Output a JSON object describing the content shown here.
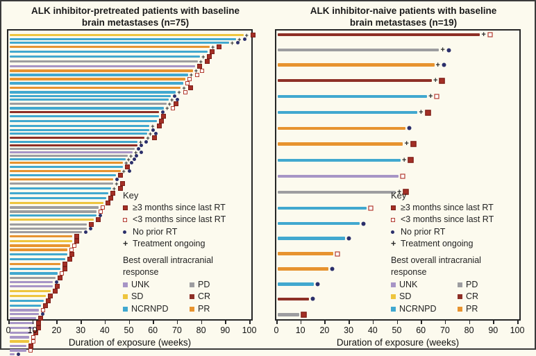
{
  "colors": {
    "background": "#FCFAEE",
    "response": {
      "UNK": "#A795C6",
      "SD": "#EEC53E",
      "NCRNPD": "#41A8CF",
      "PD": "#9D9DA0",
      "CR": "#8E2F26",
      "PR": "#E7932F"
    },
    "markers": {
      "rt_ge3_fill": "#A42F26",
      "rt_lt3_border": "#B23A2E",
      "no_prior_rt": "#2B2F6B",
      "ongoing_plus": "#2a2a2a"
    }
  },
  "legend": {
    "key_title": "Key",
    "rt_ge3": "≥3 months since last RT",
    "rt_lt3": "<3 months since last RT",
    "no_rt": "No prior RT",
    "ongoing": "Treatment ongoing",
    "response_title": "Best overall intracranial response",
    "responses": {
      "UNK": "UNK",
      "SD": "SD",
      "NCRNPD": "NCRNPD",
      "PD": "PD",
      "CR": "CR",
      "PR": "PR"
    }
  },
  "panels": [
    {
      "title_line1": "ALK inhibitor-pretreated patients with baseline",
      "title_line2": "brain metastases (n=75)",
      "xlabel": "Duration of exposure (weeks)"
    },
    {
      "title_line1": "ALK inhibitor-naive patients with baseline",
      "title_line2": "brain metastases (n=19)",
      "xlabel": "Duration of exposure (weeks)"
    }
  ],
  "chart_data": [
    {
      "type": "bar",
      "orientation": "horizontal-swimmer",
      "title": "ALK inhibitor-pretreated patients with baseline brain metastases (n=75)",
      "xlabel": "Duration of exposure (weeks)",
      "xlim": [
        0,
        100
      ],
      "xticks": [
        0,
        10,
        20,
        30,
        40,
        50,
        60,
        70,
        80,
        90,
        100
      ],
      "legend_position": "inside-lower-right",
      "grid": false,
      "marker_meaning": {
        "ge3": "≥3 months since last RT",
        "lt3": "<3 months since last RT",
        "none": "No prior RT",
        "ongoing": "Treatment ongoing"
      },
      "patients": {
        "columns": [
          "best_intracranial_response",
          "duration_weeks",
          "rt_status",
          "treatment_ongoing"
        ],
        "rows": [
          [
            "SD",
            97,
            "ge3",
            true
          ],
          [
            "NCRNPD",
            94,
            "none",
            true
          ],
          [
            "NCRNPD",
            91,
            "none",
            true
          ],
          [
            "PR",
            83,
            "ge3",
            true
          ],
          [
            "NCRNPD",
            82,
            "ge3",
            false
          ],
          [
            "NCRNPD",
            79,
            "ge3",
            true
          ],
          [
            "PD",
            78,
            "ge3",
            true
          ],
          [
            "UNK",
            77,
            "ge3",
            false
          ],
          [
            "PR",
            76,
            "lt3",
            true
          ],
          [
            "NCRNPD",
            74,
            "lt3",
            true
          ],
          [
            "PR",
            73,
            "lt3",
            false
          ],
          [
            "NCRNPD",
            72,
            "lt3",
            false
          ],
          [
            "PR",
            71,
            "ge3",
            true
          ],
          [
            "NCRNPD",
            69,
            "lt3",
            true
          ],
          [
            "NCRNPD",
            67,
            "none",
            false
          ],
          [
            "NCRNPD",
            66,
            "none",
            true
          ],
          [
            "PD",
            65,
            "ge3",
            true
          ],
          [
            "NCRNPD",
            64,
            "lt3",
            true
          ],
          [
            "CR",
            62,
            "none",
            false
          ],
          [
            "NCRNPD",
            62,
            "ge3",
            false
          ],
          [
            "NCRNPD",
            61,
            "ge3",
            false
          ],
          [
            "NCRNPD",
            58,
            "ge3",
            true
          ],
          [
            "NCRNPD",
            58,
            "none",
            false
          ],
          [
            "NCRNPD",
            57,
            "none",
            true
          ],
          [
            "CR",
            56,
            "ge3",
            true
          ],
          [
            "NCRNPD",
            53,
            "none",
            true
          ],
          [
            "CR",
            53,
            "none",
            false
          ],
          [
            "PD",
            52,
            "none",
            false
          ],
          [
            "UNK",
            51,
            "none",
            true
          ],
          [
            "PD",
            49,
            "none",
            true
          ],
          [
            "NCRNPD",
            48,
            "none",
            true
          ],
          [
            "PR",
            47,
            "none",
            true
          ],
          [
            "NCRNPD",
            47,
            "ge3",
            false
          ],
          [
            "PR",
            46,
            "none",
            true
          ],
          [
            "NCRNPD",
            44,
            "ge3",
            false
          ],
          [
            "PR",
            43,
            "none",
            false
          ],
          [
            "PD",
            43,
            "ge3",
            true
          ],
          [
            "NCRNPD",
            42,
            "ge3",
            true
          ],
          [
            "NCRNPD",
            41,
            "ge3",
            false
          ],
          [
            "NCRNPD",
            40,
            "ge3",
            false
          ],
          [
            "SD",
            39,
            "ge3",
            false
          ],
          [
            "PD",
            37,
            "lt3",
            false
          ],
          [
            "PD",
            36,
            "lt3",
            false
          ],
          [
            "NCRNPD",
            36,
            "none",
            false
          ],
          [
            "SD",
            35,
            "ge3",
            false
          ],
          [
            "PD",
            32,
            "ge3",
            false
          ],
          [
            "PD",
            32,
            "none",
            false
          ],
          [
            "PD",
            30,
            "none",
            false
          ],
          [
            "PR",
            26,
            "ge3",
            false
          ],
          [
            "SD",
            26,
            "ge3",
            false
          ],
          [
            "PR",
            25,
            "lt3",
            false
          ],
          [
            "PR",
            24,
            "lt3",
            false
          ],
          [
            "NCRNPD",
            24,
            "ge3",
            false
          ],
          [
            "NCRNPD",
            23,
            "ge3",
            false
          ],
          [
            "PR",
            21,
            "ge3",
            false
          ],
          [
            "NCRNPD",
            21,
            "ge3",
            false
          ],
          [
            "NCRNPD",
            20,
            "lt3",
            false
          ],
          [
            "PD",
            19,
            "ge3",
            false
          ],
          [
            "UNK",
            18,
            "none",
            false
          ],
          [
            "UNK",
            18,
            "ge3",
            false
          ],
          [
            "SD",
            17,
            "ge3",
            false
          ],
          [
            "SD",
            15,
            "ge3",
            false
          ],
          [
            "NCRNPD",
            14,
            "ge3",
            false
          ],
          [
            "NCRNPD",
            13,
            "ge3",
            false
          ],
          [
            "UNK",
            12,
            "lt3",
            false
          ],
          [
            "UNK",
            12,
            "none",
            false
          ],
          [
            "UNK",
            11,
            "ge3",
            false
          ],
          [
            "UNK",
            10,
            "ge3",
            false
          ],
          [
            "UNK",
            10,
            "ge3",
            false
          ],
          [
            "UNK",
            9,
            "ge3",
            false
          ],
          [
            "UNK",
            8,
            "lt3",
            false
          ],
          [
            "SD",
            8,
            "lt3",
            false
          ],
          [
            "UNK",
            7,
            "ge3",
            false
          ],
          [
            "UNK",
            7,
            "lt3",
            false
          ],
          [
            "UNK",
            2,
            "none",
            false
          ]
        ]
      }
    },
    {
      "type": "bar",
      "orientation": "horizontal-swimmer",
      "title": "ALK inhibitor-naive patients with baseline brain metastases (n=19)",
      "xlabel": "Duration of exposure (weeks)",
      "xlim": [
        0,
        100
      ],
      "xticks": [
        0,
        10,
        20,
        30,
        40,
        50,
        60,
        70,
        80,
        90,
        100
      ],
      "legend_position": "inside-lower-right",
      "grid": false,
      "marker_meaning": {
        "ge3": "≥3 months since last RT",
        "lt3": "<3 months since last RT",
        "none": "No prior RT",
        "ongoing": "Treatment ongoing"
      },
      "patients": {
        "columns": [
          "best_intracranial_response",
          "duration_weeks",
          "rt_status",
          "treatment_ongoing"
        ],
        "rows": [
          [
            "CR",
            84,
            "lt3",
            true
          ],
          [
            "PD",
            67,
            "none",
            true
          ],
          [
            "PR",
            65,
            "none",
            true
          ],
          [
            "CR",
            64,
            "ge3",
            true
          ],
          [
            "NCRNPD",
            62,
            "lt3",
            true
          ],
          [
            "NCRNPD",
            58,
            "ge3",
            true
          ],
          [
            "PR",
            53,
            "none",
            false
          ],
          [
            "PR",
            52,
            "ge3",
            true
          ],
          [
            "NCRNPD",
            51,
            "ge3",
            true
          ],
          [
            "UNK",
            50,
            "lt3",
            false
          ],
          [
            "PD",
            49,
            "ge3",
            true
          ],
          [
            "NCRNPD",
            37,
            "lt3",
            false
          ],
          [
            "NCRNPD",
            34,
            "none",
            false
          ],
          [
            "NCRNPD",
            28,
            "none",
            false
          ],
          [
            "PR",
            23,
            "lt3",
            false
          ],
          [
            "PR",
            21,
            "none",
            false
          ],
          [
            "NCRNPD",
            15,
            "none",
            false
          ],
          [
            "CR",
            13,
            "none",
            false
          ],
          [
            "PD",
            9,
            "ge3",
            false
          ]
        ]
      }
    }
  ]
}
